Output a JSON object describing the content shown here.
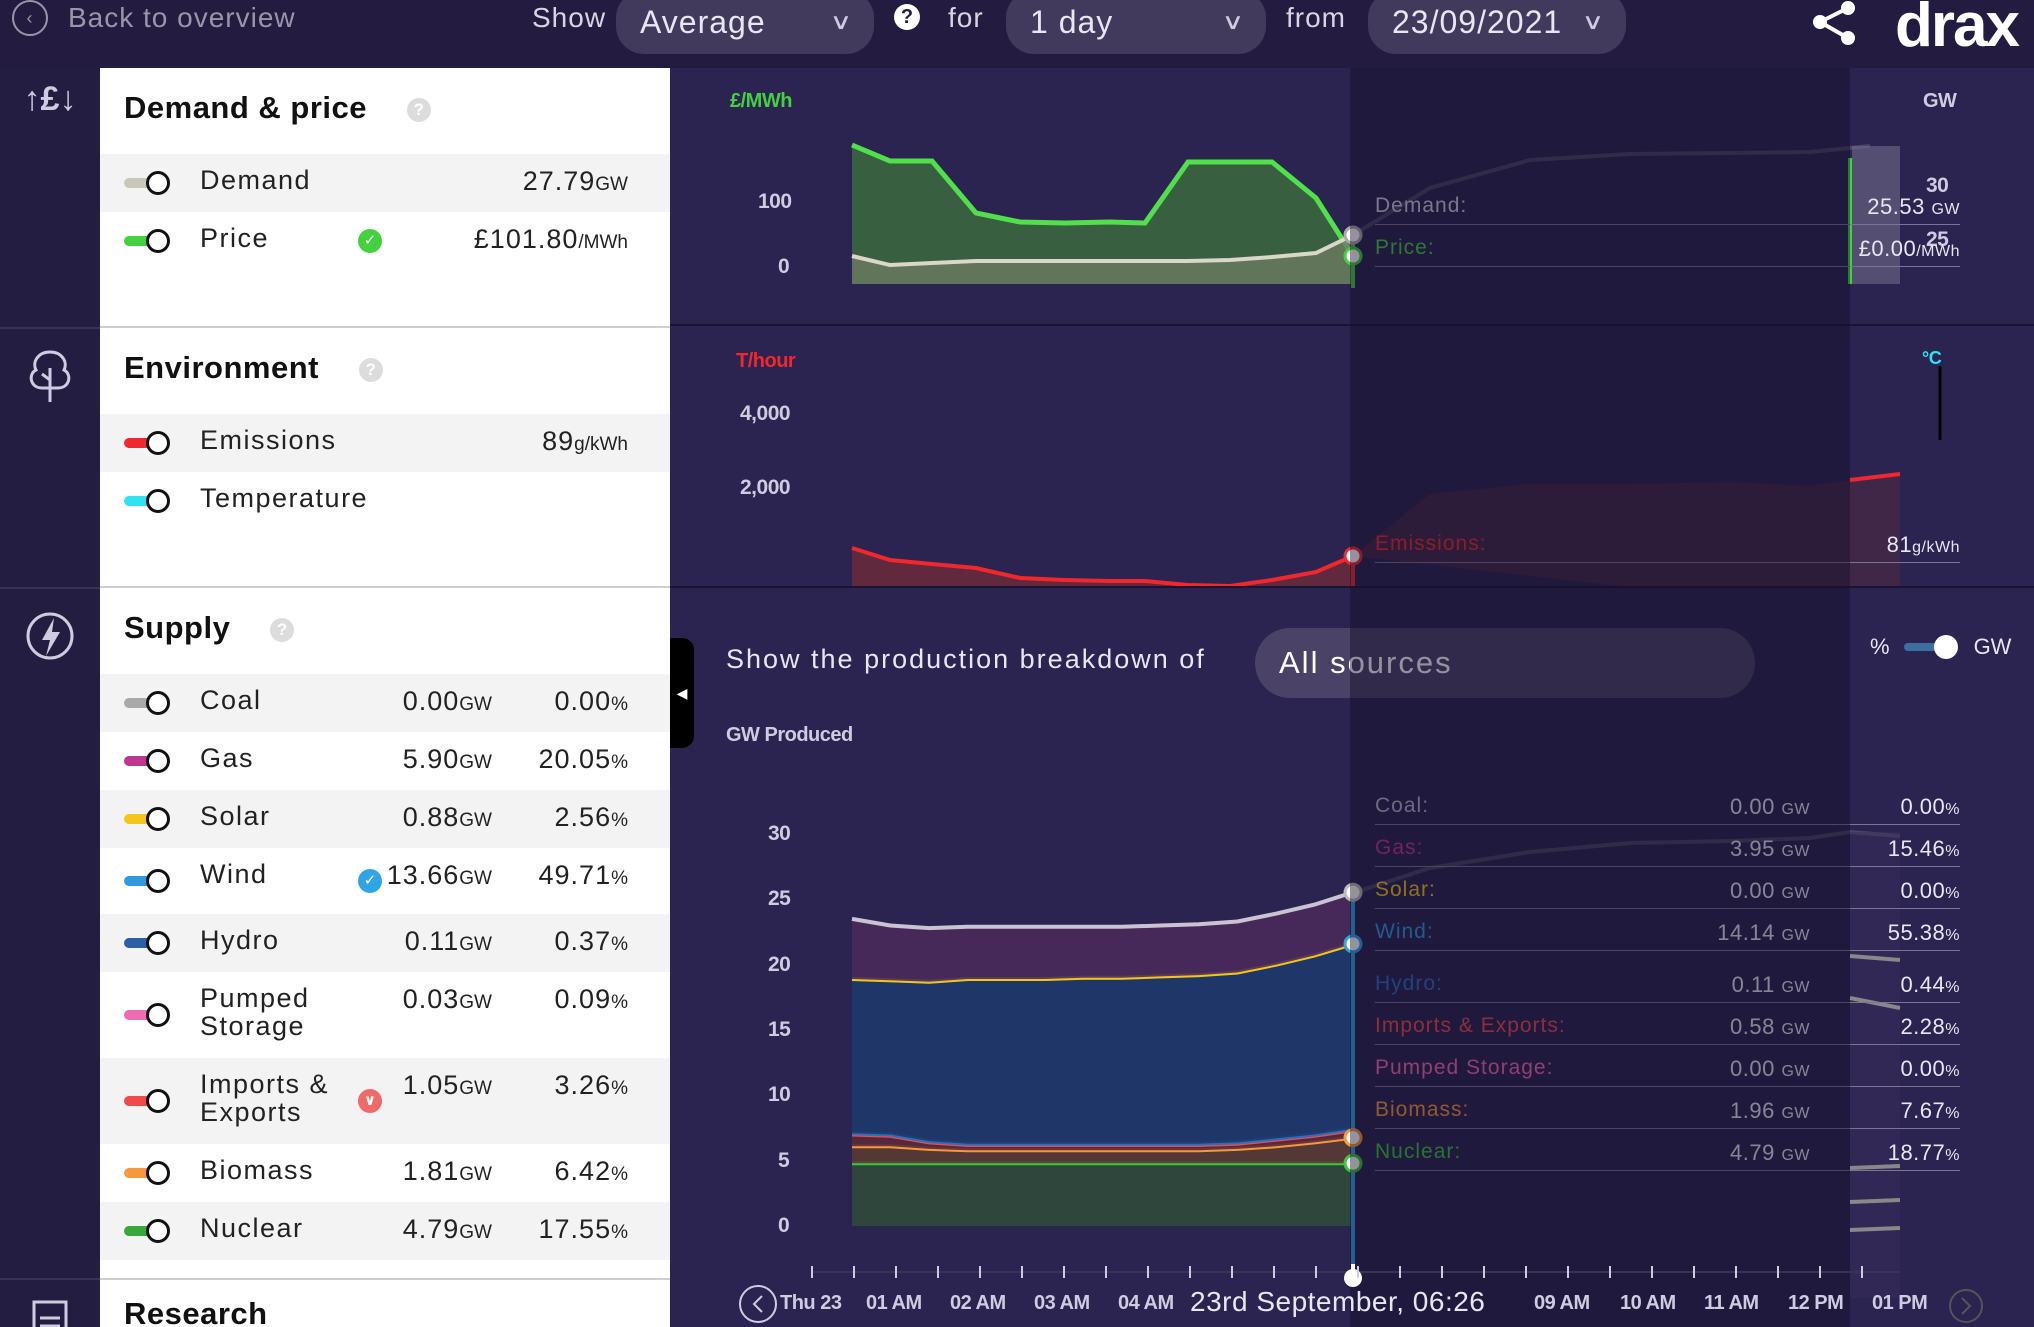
{
  "topbar": {
    "back_label": "Back to overview",
    "show_label": "Show",
    "show_value": "Average",
    "for_label": "for",
    "for_value": "1 day",
    "from_label": "from",
    "from_value": "23/09/2021",
    "logo": "drax"
  },
  "demand_price": {
    "title": "Demand & price",
    "rows": [
      {
        "label": "Demand",
        "value": "27.79",
        "unit": "GW",
        "color": "#c9c8b8"
      },
      {
        "label": "Price",
        "value": "£101.80",
        "unit": "/MWh",
        "color": "#43d13f"
      }
    ]
  },
  "environment": {
    "title": "Environment",
    "rows": [
      {
        "label": "Emissions",
        "value": "89",
        "unit": "g/kWh",
        "color": "#f0282e"
      },
      {
        "label": "Temperature",
        "value": "",
        "unit": "",
        "color": "#2fe3f0"
      }
    ]
  },
  "supply": {
    "title": "Supply",
    "rows": [
      {
        "label": "Coal",
        "gw": "0.00",
        "pct": "0.00",
        "color": "#a9a9a9"
      },
      {
        "label": "Gas",
        "gw": "5.90",
        "pct": "20.05",
        "color": "#c0368f"
      },
      {
        "label": "Solar",
        "gw": "0.88",
        "pct": "2.56",
        "color": "#f5c518"
      },
      {
        "label": "Wind",
        "gw": "13.66",
        "pct": "49.71",
        "color": "#2f9ae0"
      },
      {
        "label": "Hydro",
        "gw": "0.11",
        "pct": "0.37",
        "color": "#2c5eaa"
      },
      {
        "label": "Pumped\nStorage",
        "gw": "0.03",
        "pct": "0.09",
        "color": "#f06ab0"
      },
      {
        "label": "Imports &\nExports",
        "gw": "1.05",
        "pct": "3.26",
        "color": "#f04a4a"
      },
      {
        "label": "Biomass",
        "gw": "1.81",
        "pct": "6.42",
        "color": "#f59a3a"
      },
      {
        "label": "Nuclear",
        "gw": "4.79",
        "pct": "17.55",
        "color": "#38a83a"
      }
    ],
    "gw_unit": "GW",
    "pct_unit": "%"
  },
  "research": {
    "title": "Research"
  },
  "charts": {
    "price_axis_label": "£/MWh",
    "gw_axis_label": "GW",
    "emissions_axis_label": "T/hour",
    "temp_axis_label": "°C",
    "produced_axis_label": "GW Produced",
    "price_ticks": [
      "100",
      "0"
    ],
    "gw_ticks": [
      "30",
      "25"
    ],
    "emission_ticks": [
      "4,000",
      "2,000"
    ],
    "produced_ticks": [
      "30",
      "25",
      "20",
      "15",
      "10",
      "5",
      "0"
    ],
    "breakdown_label": "Show the production breakdown of",
    "breakdown_value": "All sources",
    "pct_label": "%",
    "gw_label": "GW"
  },
  "tooltip": {
    "demand_label": "Demand:",
    "demand_value": "25.53",
    "demand_unit": "GW",
    "price_label": "Price:",
    "price_value": "£0.00",
    "price_unit": "/MWh",
    "emissions_label": "Emissions:",
    "emissions_value": "81",
    "emissions_unit": "g/kWh",
    "supply": [
      {
        "label": "Coal:",
        "gw": "0.00",
        "pct": "0.00",
        "color": "#b8b4c8"
      },
      {
        "label": "Gas:",
        "gw": "3.95",
        "pct": "15.46",
        "color": "#c0368f"
      },
      {
        "label": "Solar:",
        "gw": "0.00",
        "pct": "0.00",
        "color": "#f5c518"
      },
      {
        "label": "Wind:",
        "gw": "14.14",
        "pct": "55.38",
        "color": "#2f9ae0"
      },
      {
        "label": "Hydro:",
        "gw": "0.11",
        "pct": "0.44",
        "color": "#2c6fc0"
      },
      {
        "label": "Imports & Exports:",
        "gw": "0.58",
        "pct": "2.28",
        "color": "#f04a4a"
      },
      {
        "label": "Pumped Storage:",
        "gw": "0.00",
        "pct": "0.00",
        "color": "#f06ab0"
      },
      {
        "label": "Biomass:",
        "gw": "1.96",
        "pct": "7.67",
        "color": "#f59a3a"
      },
      {
        "label": "Nuclear:",
        "gw": "4.79",
        "pct": "18.77",
        "color": "#38c83a"
      }
    ],
    "gw_unit": "GW",
    "pct_unit": "%"
  },
  "timeline": {
    "labels": [
      "Thu 23",
      "01 AM",
      "02 AM",
      "03 AM",
      "04 AM",
      "09 AM",
      "10 AM",
      "11 AM",
      "12 PM",
      "01 PM"
    ],
    "current": "23rd September, 06:26"
  },
  "chart_data": {
    "type": "area",
    "title": "",
    "xlabel": "",
    "ylabel": "GW Produced",
    "ylim": [
      0,
      30
    ],
    "x": [
      "00:00",
      "00:30",
      "01:00",
      "01:30",
      "02:00",
      "02:30",
      "03:00",
      "03:30",
      "04:00",
      "04:30",
      "05:00",
      "05:30",
      "06:00",
      "06:26"
    ],
    "series": [
      {
        "name": "Nuclear",
        "values": [
          4.8,
          4.8,
          4.8,
          4.8,
          4.8,
          4.8,
          4.8,
          4.8,
          4.8,
          4.8,
          4.8,
          4.8,
          4.8,
          4.8
        ]
      },
      {
        "name": "Biomass",
        "values": [
          1.3,
          1.3,
          1.1,
          1.0,
          1.0,
          1.0,
          1.0,
          1.0,
          1.0,
          1.0,
          1.1,
          1.3,
          1.6,
          1.96
        ]
      },
      {
        "name": "Imports & Exports",
        "values": [
          0.9,
          0.8,
          0.5,
          0.4,
          0.4,
          0.4,
          0.4,
          0.4,
          0.4,
          0.4,
          0.4,
          0.5,
          0.5,
          0.58
        ]
      },
      {
        "name": "Hydro",
        "values": [
          0.1,
          0.1,
          0.1,
          0.1,
          0.1,
          0.1,
          0.1,
          0.1,
          0.1,
          0.1,
          0.1,
          0.1,
          0.1,
          0.11
        ]
      },
      {
        "name": "Wind",
        "values": [
          11.8,
          11.8,
          12.2,
          12.6,
          12.6,
          12.6,
          12.7,
          12.7,
          12.8,
          12.9,
          13.0,
          13.3,
          13.7,
          14.14
        ]
      },
      {
        "name": "Solar",
        "values": [
          0,
          0,
          0,
          0,
          0,
          0,
          0,
          0,
          0,
          0,
          0,
          0,
          0,
          0
        ]
      },
      {
        "name": "Gas",
        "values": [
          4.6,
          4.2,
          4.1,
          4.0,
          4.0,
          4.0,
          3.9,
          3.9,
          3.9,
          3.9,
          3.9,
          3.9,
          3.9,
          3.95
        ]
      }
    ]
  }
}
